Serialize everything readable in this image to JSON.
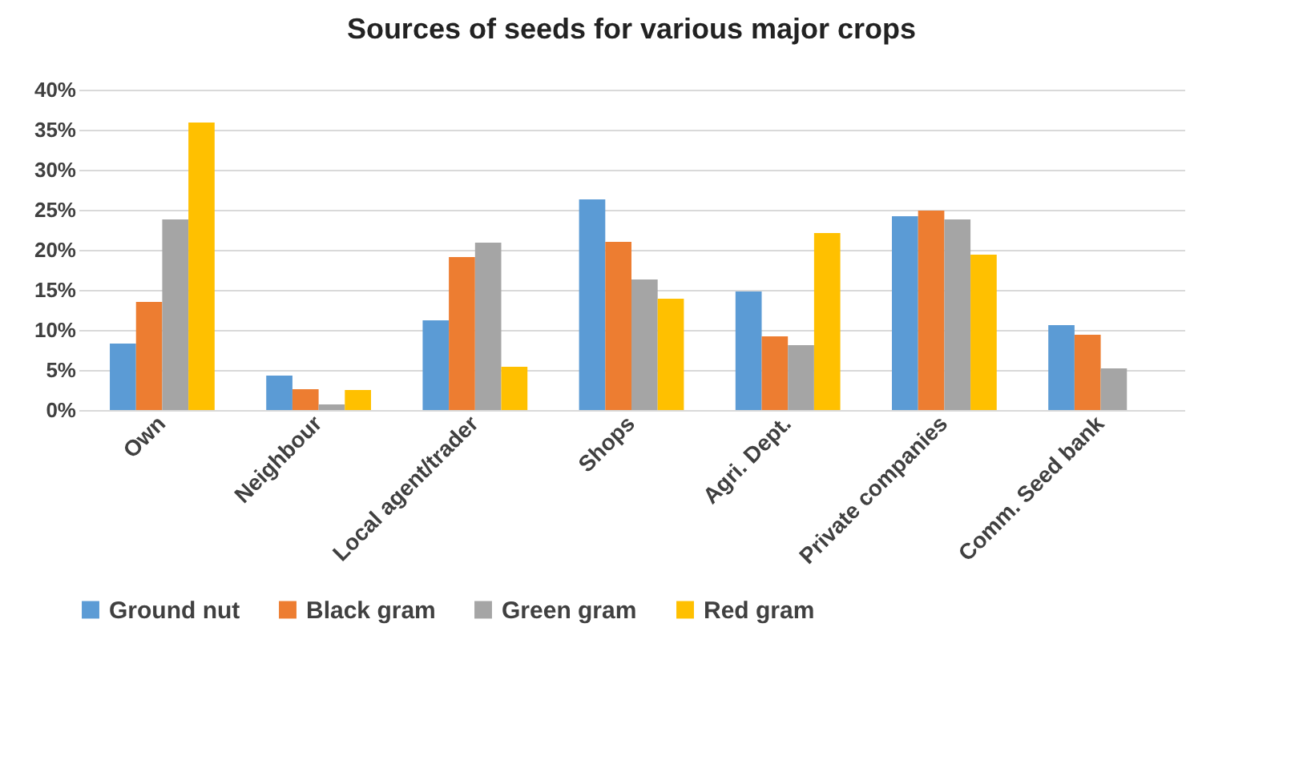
{
  "chart_data": {
    "type": "bar",
    "title": "Sources of seeds for various major crops",
    "categories": [
      "Own",
      "Neighbour",
      "Local agent/trader",
      "Shops",
      "Agri. Dept.",
      "Private companies",
      "Comm. Seed bank"
    ],
    "series": [
      {
        "name": "Ground nut",
        "color": "#5b9bd5",
        "values": [
          8.3,
          4.3,
          11.2,
          26.3,
          14.8,
          24.2,
          10.6
        ]
      },
      {
        "name": "Black gram",
        "color": "#ed7d31",
        "values": [
          13.5,
          2.6,
          19.1,
          21.0,
          9.2,
          24.9,
          9.4
        ]
      },
      {
        "name": "Green gram",
        "color": "#a5a5a5",
        "values": [
          23.8,
          0.7,
          20.9,
          16.3,
          8.1,
          23.8,
          5.2
        ]
      },
      {
        "name": "Red gram",
        "color": "#ffc000",
        "values": [
          35.9,
          2.5,
          5.4,
          13.9,
          22.1,
          19.4,
          null
        ]
      }
    ],
    "ylim": [
      0,
      40
    ],
    "yticks": [
      {
        "value": 0,
        "label": "0%"
      },
      {
        "value": 5,
        "label": "5%"
      },
      {
        "value": 10,
        "label": "10%"
      },
      {
        "value": 15,
        "label": "15%"
      },
      {
        "value": 20,
        "label": "20%"
      },
      {
        "value": 25,
        "label": "25%"
      },
      {
        "value": 30,
        "label": "30%"
      },
      {
        "value": 35,
        "label": "35%"
      },
      {
        "value": 40,
        "label": "40%"
      }
    ],
    "grid": "y",
    "legend": "bottom"
  }
}
